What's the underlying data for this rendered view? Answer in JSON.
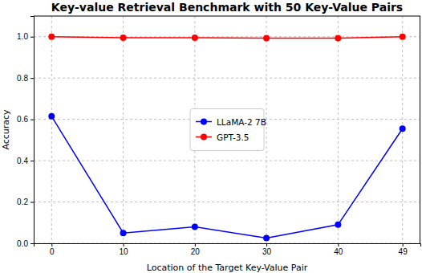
{
  "chart_data": {
    "type": "line",
    "title": "Key-value Retrieval Benchmark with 50 Key-Value Pairs",
    "x_label": "Location of the Target Key-Value Pair",
    "y_label": "Accuracy",
    "x": [
      0,
      10,
      20,
      30,
      40,
      49
    ],
    "series": [
      {
        "name": "LLaMA-2 7B",
        "color": "#0000ff",
        "marker": "circle",
        "line_style": "solid",
        "values": [
          0.615,
          0.05,
          0.08,
          0.025,
          0.09,
          0.555
        ]
      },
      {
        "name": "GPT-3.5",
        "color": "#ff0000",
        "marker": "circle",
        "line_style": "solid",
        "values": [
          1.0,
          0.995,
          0.995,
          0.993,
          0.993,
          1.0
        ]
      }
    ],
    "xlim": [
      -2.5,
      51.5
    ],
    "xticks": [
      0,
      10,
      20,
      30,
      40,
      49
    ],
    "ylim": [
      0,
      1.1
    ],
    "yticks": [
      {
        "value": 0,
        "label": "0.0"
      },
      0.2,
      0.4,
      0.6,
      0.8,
      {
        "value": 1,
        "label": "1.0"
      }
    ],
    "grid": true,
    "legend": "center"
  }
}
